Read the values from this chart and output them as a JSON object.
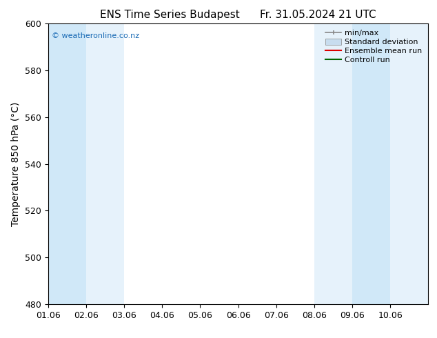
{
  "title_left": "ENS Time Series Budapest",
  "title_right": "Fr. 31.05.2024 21 UTC",
  "ylabel": "Temperature 850 hPa (°C)",
  "ylim": [
    480,
    600
  ],
  "yticks": [
    480,
    500,
    520,
    540,
    560,
    580,
    600
  ],
  "xlim": [
    0,
    10
  ],
  "xtick_labels": [
    "01.06",
    "02.06",
    "03.06",
    "04.06",
    "05.06",
    "06.06",
    "07.06",
    "08.06",
    "09.06",
    "10.06"
  ],
  "xtick_positions": [
    0,
    1,
    2,
    3,
    4,
    5,
    6,
    7,
    8,
    9
  ],
  "shaded_bands": [
    {
      "x_start": 0,
      "x_end": 1,
      "color": "#d0e8f8"
    },
    {
      "x_start": 1,
      "x_end": 2,
      "color": "#e6f2fb"
    },
    {
      "x_start": 7,
      "x_end": 8,
      "color": "#e6f2fb"
    },
    {
      "x_start": 8,
      "x_end": 9,
      "color": "#d0e8f8"
    },
    {
      "x_start": 9,
      "x_end": 10,
      "color": "#e6f2fb"
    }
  ],
  "watermark_text": "© weatheronline.co.nz",
  "watermark_color": "#1a6bb5",
  "bg_color": "#ffffff",
  "plot_bg_color": "#ffffff",
  "spine_color": "#000000",
  "tick_color": "#000000",
  "title_fontsize": 11,
  "axis_label_fontsize": 10,
  "tick_fontsize": 9,
  "legend_fontsize": 8,
  "minmax_color": "#888888",
  "std_color": "#c8ddef",
  "mean_color": "#dd0000",
  "ctrl_color": "#006600"
}
